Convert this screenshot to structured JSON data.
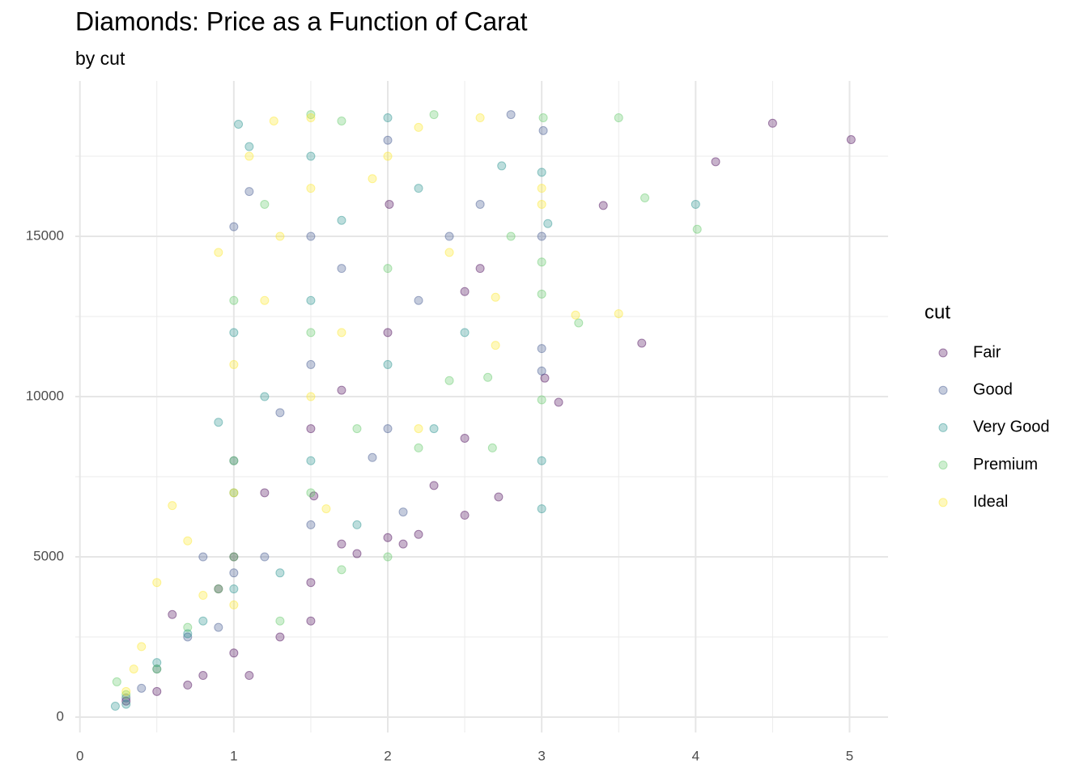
{
  "chart_data": {
    "type": "scatter",
    "title": "Diamonds: Price as a Function of Carat",
    "subtitle": "by cut",
    "legend_title": "cut",
    "legend_position": "right",
    "grid": true,
    "xlim": [
      -0.03,
      5.25
    ],
    "ylim": [
      -480,
      19850
    ],
    "xticks": [
      0,
      1,
      2,
      3,
      4,
      5
    ],
    "yticks": [
      0,
      5000,
      10000,
      15000
    ],
    "xminorticks": [
      0.5,
      1.5,
      2.5,
      3.5,
      4.5
    ],
    "yminorticks": [
      2500,
      7500,
      12500,
      17500
    ],
    "opacity": 0.3,
    "series": [
      {
        "name": "Fair",
        "color": "#440154",
        "x": [
          4.5,
          5.01,
          4.13,
          3.4,
          3.65,
          3.11,
          3.02,
          2.5,
          2.72,
          2.5,
          2.3,
          2.2,
          2.1,
          2.0,
          1.8,
          1.7,
          1.5,
          1.5,
          1.3,
          1.1,
          1.0,
          0.8,
          0.7,
          0.5,
          0.3,
          1.0,
          1.5,
          2.0,
          2.01,
          1.2,
          0.9,
          0.6,
          2.5,
          2.6,
          1.52,
          1.7
        ],
        "y": [
          18530,
          18018,
          17329,
          15964,
          11668,
          9823,
          10577,
          13278,
          6870,
          6300,
          7226,
          5700,
          5400,
          5600,
          5100,
          5400,
          3000,
          4200,
          2500,
          1300,
          2000,
          1300,
          1000,
          800,
          500,
          5000,
          9000,
          12000,
          16000,
          7000,
          4000,
          3200,
          8700,
          14000,
          6900,
          10200
        ]
      },
      {
        "name": "Good",
        "color": "#3b528b",
        "x": [
          2.8,
          3.01,
          3.0,
          3.0,
          3.0,
          2.6,
          2.4,
          2.2,
          2.0,
          2.0,
          1.5,
          1.5,
          1.0,
          1.0,
          1.0,
          0.9,
          0.7,
          0.5,
          0.3,
          1.2,
          1.5,
          1.7,
          1.3,
          0.8,
          1.1,
          2.1,
          0.4,
          1.9
        ],
        "y": [
          18800,
          18300,
          11500,
          10800,
          15000,
          16000,
          15000,
          13000,
          18000,
          9000,
          15000,
          11000,
          15300,
          8000,
          4500,
          2800,
          2500,
          1500,
          600,
          5000,
          6000,
          14000,
          9500,
          5000,
          16400,
          6400,
          900,
          8100
        ]
      },
      {
        "name": "Very Good",
        "color": "#21908c",
        "x": [
          1.03,
          1.1,
          2.0,
          3.0,
          3.04,
          4.0,
          3.0,
          3.0,
          2.74,
          2.5,
          2.3,
          2.0,
          1.5,
          1.5,
          1.5,
          1.0,
          1.0,
          1.0,
          0.8,
          0.7,
          0.5,
          0.3,
          0.23,
          1.2,
          1.7,
          1.8,
          0.9,
          2.2,
          1.3
        ],
        "y": [
          18500,
          17800,
          18700,
          17000,
          15400,
          16000,
          6500,
          8000,
          17200,
          12000,
          9000,
          11000,
          17500,
          13000,
          8000,
          12000,
          7000,
          4000,
          3000,
          2600,
          1700,
          400,
          340,
          10000,
          15500,
          6000,
          9200,
          16500,
          4500
        ]
      },
      {
        "name": "Premium",
        "color": "#5dc863",
        "x": [
          3.5,
          3.01,
          3.67,
          4.01,
          3.24,
          3.0,
          3.0,
          3.0,
          2.8,
          2.65,
          2.68,
          2.4,
          2.2,
          2.0,
          1.7,
          1.5,
          1.7,
          2.3,
          1.5,
          1.5,
          1.0,
          1.0,
          1.0,
          0.9,
          0.7,
          0.5,
          0.3,
          0.24,
          1.2,
          2.0,
          1.8,
          1.3
        ],
        "y": [
          18700,
          18700,
          16200,
          15223,
          12300,
          14200,
          13200,
          9900,
          15000,
          10600,
          8400,
          10500,
          8400,
          5000,
          4600,
          18800,
          18600,
          18800,
          12000,
          7000,
          13000,
          8000,
          5000,
          4000,
          2800,
          1500,
          700,
          1100,
          16000,
          14000,
          9000,
          3000
        ]
      },
      {
        "name": "Ideal",
        "color": "#fde725",
        "x": [
          3.22,
          3.5,
          2.7,
          2.7,
          3.0,
          3.0,
          2.6,
          2.2,
          1.5,
          1.26,
          1.1,
          0.9,
          0.6,
          0.7,
          0.5,
          0.4,
          0.35,
          0.3,
          1.0,
          1.0,
          1.0,
          1.2,
          1.3,
          1.5,
          1.5,
          1.7,
          2.0,
          2.2,
          1.6,
          0.8,
          2.4,
          1.9
        ],
        "y": [
          12545,
          12587,
          13100,
          11600,
          16500,
          16000,
          18700,
          18400,
          18700,
          18600,
          17500,
          14500,
          6600,
          5500,
          4200,
          2200,
          1500,
          800,
          11000,
          7000,
          3500,
          13000,
          15000,
          16500,
          10000,
          12000,
          17500,
          9000,
          6500,
          3800,
          14500,
          16800
        ]
      }
    ]
  }
}
